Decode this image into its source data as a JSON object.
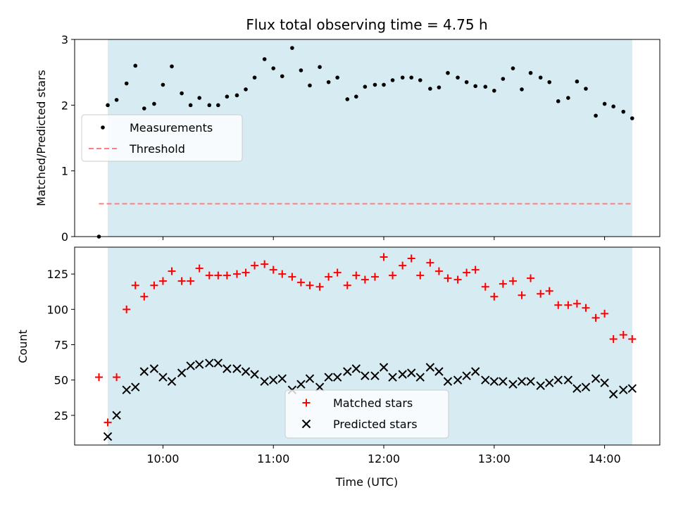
{
  "chart_data": [
    {
      "type": "scatter",
      "title": "Flux total observing time = 4.75 h",
      "xlabel": "",
      "ylabel": "Matched/Predicted stars",
      "xlim": [
        9.2,
        14.5
      ],
      "ylim": [
        0,
        3
      ],
      "yticks": [
        0,
        1,
        2,
        3
      ],
      "xticks": [
        10,
        11,
        12,
        13,
        14
      ],
      "shaded_span": [
        9.5,
        14.25
      ],
      "legend_position": "center-left",
      "series": [
        {
          "name": "Measurements",
          "marker": "dot",
          "color": "#000000",
          "x": [
            9.42,
            9.5,
            9.58,
            9.67,
            9.75,
            9.83,
            9.92,
            10.0,
            10.08,
            10.17,
            10.25,
            10.33,
            10.42,
            10.5,
            10.58,
            10.67,
            10.75,
            10.83,
            10.92,
            11.0,
            11.08,
            11.17,
            11.25,
            11.33,
            11.42,
            11.5,
            11.58,
            11.67,
            11.75,
            11.83,
            11.92,
            12.0,
            12.08,
            12.17,
            12.25,
            12.33,
            12.42,
            12.5,
            12.58,
            12.67,
            12.75,
            12.83,
            12.92,
            13.0,
            13.08,
            13.17,
            13.25,
            13.33,
            13.42,
            13.5,
            13.58,
            13.67,
            13.75,
            13.83,
            13.92,
            14.0,
            14.08,
            14.17,
            14.25
          ],
          "y": [
            0.0,
            2.0,
            2.08,
            2.33,
            2.6,
            1.95,
            2.02,
            2.31,
            2.59,
            2.18,
            2.0,
            2.11,
            2.0,
            2.0,
            2.13,
            2.15,
            2.24,
            2.42,
            2.7,
            2.56,
            2.44,
            2.87,
            2.53,
            2.3,
            2.58,
            2.35,
            2.42,
            2.09,
            2.13,
            2.28,
            2.31,
            2.31,
            2.38,
            2.42,
            2.42,
            2.38,
            2.25,
            2.27,
            2.49,
            2.42,
            2.35,
            2.29,
            2.28,
            2.22,
            2.4,
            2.56,
            2.24,
            2.49,
            2.42,
            2.35,
            2.06,
            2.11,
            2.36,
            2.25,
            1.84,
            2.02,
            1.98,
            1.9,
            1.8
          ]
        },
        {
          "name": "Threshold",
          "type": "line",
          "style": "dashed",
          "color": "#ff7f7f",
          "x": [
            9.42,
            14.25
          ],
          "y": [
            0.5,
            0.5
          ]
        }
      ]
    },
    {
      "type": "scatter",
      "title": "",
      "xlabel": "Time (UTC)",
      "ylabel": "Count",
      "xlim": [
        9.2,
        14.5
      ],
      "ylim": [
        4,
        144
      ],
      "yticks": [
        25,
        50,
        75,
        100,
        125
      ],
      "xticks": [
        10,
        11,
        12,
        13,
        14
      ],
      "xtick_labels": [
        "10:00",
        "11:00",
        "12:00",
        "13:00",
        "14:00"
      ],
      "shaded_span": [
        9.5,
        14.25
      ],
      "legend_position": "lower-center",
      "series": [
        {
          "name": "Matched stars",
          "marker": "plus",
          "color": "#ff0000",
          "x": [
            9.42,
            9.5,
            9.58,
            9.67,
            9.75,
            9.83,
            9.92,
            10.0,
            10.08,
            10.17,
            10.25,
            10.33,
            10.42,
            10.5,
            10.58,
            10.67,
            10.75,
            10.83,
            10.92,
            11.0,
            11.08,
            11.17,
            11.25,
            11.33,
            11.42,
            11.5,
            11.58,
            11.67,
            11.75,
            11.83,
            11.92,
            12.0,
            12.08,
            12.17,
            12.25,
            12.33,
            12.42,
            12.5,
            12.58,
            12.67,
            12.75,
            12.83,
            12.92,
            13.0,
            13.08,
            13.17,
            13.25,
            13.33,
            13.42,
            13.5,
            13.58,
            13.67,
            13.75,
            13.83,
            13.92,
            14.0,
            14.08,
            14.17,
            14.25
          ],
          "y": [
            52,
            20,
            52,
            100,
            117,
            109,
            117,
            120,
            127,
            120,
            120,
            129,
            124,
            124,
            124,
            125,
            126,
            131,
            132,
            128,
            125,
            123,
            119,
            117,
            116,
            123,
            126,
            117,
            124,
            121,
            123,
            137,
            124,
            131,
            136,
            124,
            133,
            127,
            122,
            121,
            126,
            128,
            116,
            109,
            118,
            120,
            110,
            122,
            111,
            113,
            103,
            103,
            104,
            101,
            94,
            97,
            79,
            82,
            79
          ]
        },
        {
          "name": "Predicted stars",
          "marker": "x",
          "color": "#000000",
          "x": [
            9.5,
            9.58,
            9.67,
            9.75,
            9.83,
            9.92,
            10.0,
            10.08,
            10.17,
            10.25,
            10.33,
            10.42,
            10.5,
            10.58,
            10.67,
            10.75,
            10.83,
            10.92,
            11.0,
            11.08,
            11.17,
            11.25,
            11.33,
            11.42,
            11.5,
            11.58,
            11.67,
            11.75,
            11.83,
            11.92,
            12.0,
            12.08,
            12.17,
            12.25,
            12.33,
            12.42,
            12.5,
            12.58,
            12.67,
            12.75,
            12.83,
            12.92,
            13.0,
            13.08,
            13.17,
            13.25,
            13.33,
            13.42,
            13.5,
            13.58,
            13.67,
            13.75,
            13.83,
            13.92,
            14.0,
            14.08,
            14.17,
            14.25
          ],
          "y": [
            10,
            25,
            43,
            45,
            56,
            58,
            52,
            49,
            55,
            60,
            61,
            62,
            62,
            58,
            58,
            56,
            54,
            49,
            50,
            51,
            43,
            47,
            51,
            45,
            52,
            52,
            56,
            58,
            53,
            53,
            59,
            52,
            54,
            55,
            52,
            59,
            56,
            49,
            50,
            53,
            56,
            50,
            49,
            49,
            47,
            49,
            49,
            46,
            48,
            50,
            50,
            44,
            45,
            51,
            48,
            40,
            43,
            44
          ]
        }
      ]
    }
  ]
}
